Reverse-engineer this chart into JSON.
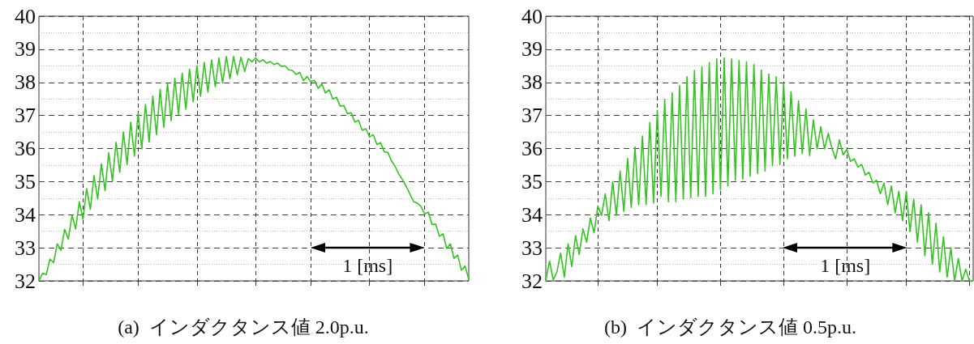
{
  "chart_data": [
    {
      "type": "line",
      "title": "(a)  インダクタンス値 2.0p.u.",
      "color": "#33c41f",
      "line_style": "solid",
      "grid": true,
      "tick_labels": "y",
      "ylim": [
        32,
        40
      ],
      "yticks": [
        32,
        33,
        34,
        35,
        36,
        37,
        38,
        39,
        40
      ],
      "annotations": [
        "1 [ms]"
      ],
      "categories": [
        null,
        null,
        null,
        null,
        null,
        null,
        null,
        null,
        null,
        null,
        null,
        null,
        null,
        null,
        null,
        null,
        null,
        null,
        null,
        null,
        null,
        null,
        null,
        null,
        null,
        null,
        null,
        null,
        null,
        null,
        null,
        null,
        null,
        null,
        null,
        null,
        null,
        null,
        null,
        null,
        null,
        null,
        null,
        null,
        null,
        null,
        null,
        null,
        null,
        null,
        null,
        null,
        null,
        null,
        null,
        null,
        null,
        null,
        null,
        null,
        null,
        null,
        null,
        null,
        null,
        null,
        null,
        null,
        null,
        null,
        null,
        null,
        null,
        null,
        null,
        null,
        null,
        null,
        null,
        null,
        null,
        null,
        null,
        null,
        null,
        null,
        null,
        null,
        null,
        null,
        null,
        null,
        null,
        null,
        null,
        null,
        null,
        null,
        null,
        null,
        null,
        null,
        null,
        null,
        null,
        null,
        null,
        null,
        null,
        null,
        null,
        null,
        null,
        null,
        null,
        null,
        null,
        null
      ],
      "values": [
        32.0,
        32.23,
        32.19,
        32.66,
        32.55,
        33.12,
        32.92,
        33.56,
        33.26,
        33.98,
        33.57,
        34.39,
        33.86,
        34.79,
        34.16,
        35.18,
        34.47,
        35.54,
        34.73,
        35.87,
        35.02,
        36.19,
        35.28,
        36.5,
        35.52,
        36.8,
        35.77,
        37.07,
        35.99,
        37.33,
        36.2,
        37.58,
        36.42,
        37.79,
        36.64,
        37.97,
        36.84,
        38.13,
        37.03,
        38.28,
        37.19,
        38.4,
        37.41,
        38.5,
        37.58,
        38.6,
        37.7,
        38.68,
        37.87,
        38.74,
        37.98,
        38.78,
        38.11,
        38.78,
        38.23,
        38.76,
        38.33,
        38.72,
        38.62,
        38.74,
        38.62,
        38.68,
        38.58,
        38.63,
        38.54,
        38.58,
        38.48,
        38.5,
        38.38,
        38.36,
        38.24,
        38.3,
        38.05,
        38.18,
        38.02,
        38.06,
        37.82,
        37.95,
        37.68,
        37.78,
        37.5,
        37.55,
        37.28,
        37.3,
        37.05,
        37.08,
        36.8,
        36.85,
        36.55,
        36.6,
        36.35,
        36.42,
        36.12,
        36.18,
        35.9,
        35.88,
        35.62,
        35.45,
        35.22,
        35.05,
        34.85,
        34.62,
        34.4,
        34.35,
        34.25,
        34.02,
        34.08,
        33.7,
        33.72,
        33.35,
        33.42,
        32.98,
        33.12,
        32.68,
        32.78,
        32.32,
        32.45,
        32.05
      ]
    },
    {
      "type": "line",
      "title": "(b)  インダクタンス値 0.5p.u.",
      "color": "#33c41f",
      "line_style": "solid",
      "grid": true,
      "tick_labels": "y",
      "ylim": [
        32,
        40
      ],
      "yticks": [
        32,
        33,
        34,
        35,
        36,
        37,
        38,
        39,
        40
      ],
      "annotations": [
        "1 [ms]"
      ],
      "categories": [
        null,
        null,
        null,
        null,
        null,
        null,
        null,
        null,
        null,
        null,
        null,
        null,
        null,
        null,
        null,
        null,
        null,
        null,
        null,
        null,
        null,
        null,
        null,
        null,
        null,
        null,
        null,
        null,
        null,
        null,
        null,
        null,
        null,
        null,
        null,
        null,
        null,
        null,
        null,
        null,
        null,
        null,
        null,
        null,
        null,
        null,
        null,
        null,
        null,
        null,
        null,
        null,
        null,
        null,
        null,
        null,
        null,
        null,
        null,
        null,
        null,
        null,
        null,
        null,
        null,
        null,
        null,
        null,
        null,
        null,
        null,
        null,
        null,
        null,
        null,
        null,
        null,
        null,
        null,
        null,
        null,
        null,
        null,
        null,
        null,
        null,
        null,
        null,
        null,
        null,
        null,
        null,
        null,
        null,
        null,
        null,
        null,
        null,
        null,
        null,
        null,
        null,
        null,
        null,
        null,
        null,
        null,
        null,
        null,
        null,
        null,
        null,
        null,
        null,
        null,
        null
      ],
      "values": [
        32.0,
        32.6,
        32.03,
        32.27,
        32.84,
        32.11,
        33.12,
        32.43,
        33.37,
        32.8,
        33.57,
        33.17,
        33.9,
        33.45,
        34.26,
        33.98,
        34.63,
        33.82,
        35.0,
        33.98,
        35.32,
        34.1,
        35.7,
        34.22,
        36.05,
        34.3,
        36.38,
        34.3,
        36.79,
        34.35,
        37.15,
        34.55,
        37.48,
        34.39,
        37.68,
        34.39,
        37.9,
        34.47,
        38.17,
        34.51,
        38.36,
        34.55,
        38.47,
        34.55,
        38.6,
        34.63,
        38.71,
        34.75,
        38.74,
        34.87,
        38.71,
        35.04,
        38.66,
        35.08,
        38.62,
        35.16,
        38.54,
        35.24,
        38.37,
        35.32,
        38.25,
        35.48,
        38.17,
        35.52,
        37.97,
        35.69,
        37.72,
        35.77,
        37.44,
        35.85,
        37.19,
        35.79,
        36.87,
        35.99,
        36.66,
        35.99,
        36.46,
        36.0,
        35.69,
        36.26,
        35.81,
        35.97,
        35.61,
        35.69,
        35.44,
        35.52,
        35.2,
        35.28,
        34.96,
        35.04,
        34.63,
        34.96,
        34.3,
        34.87,
        34.06,
        34.71,
        33.82,
        34.71,
        33.49,
        34.47,
        33.17,
        34.3,
        32.76,
        34.06,
        32.51,
        33.74,
        32.27,
        33.33,
        32.11,
        33.0,
        32.0,
        32.68,
        32.0,
        32.35,
        32.0,
        32.0
      ]
    }
  ]
}
